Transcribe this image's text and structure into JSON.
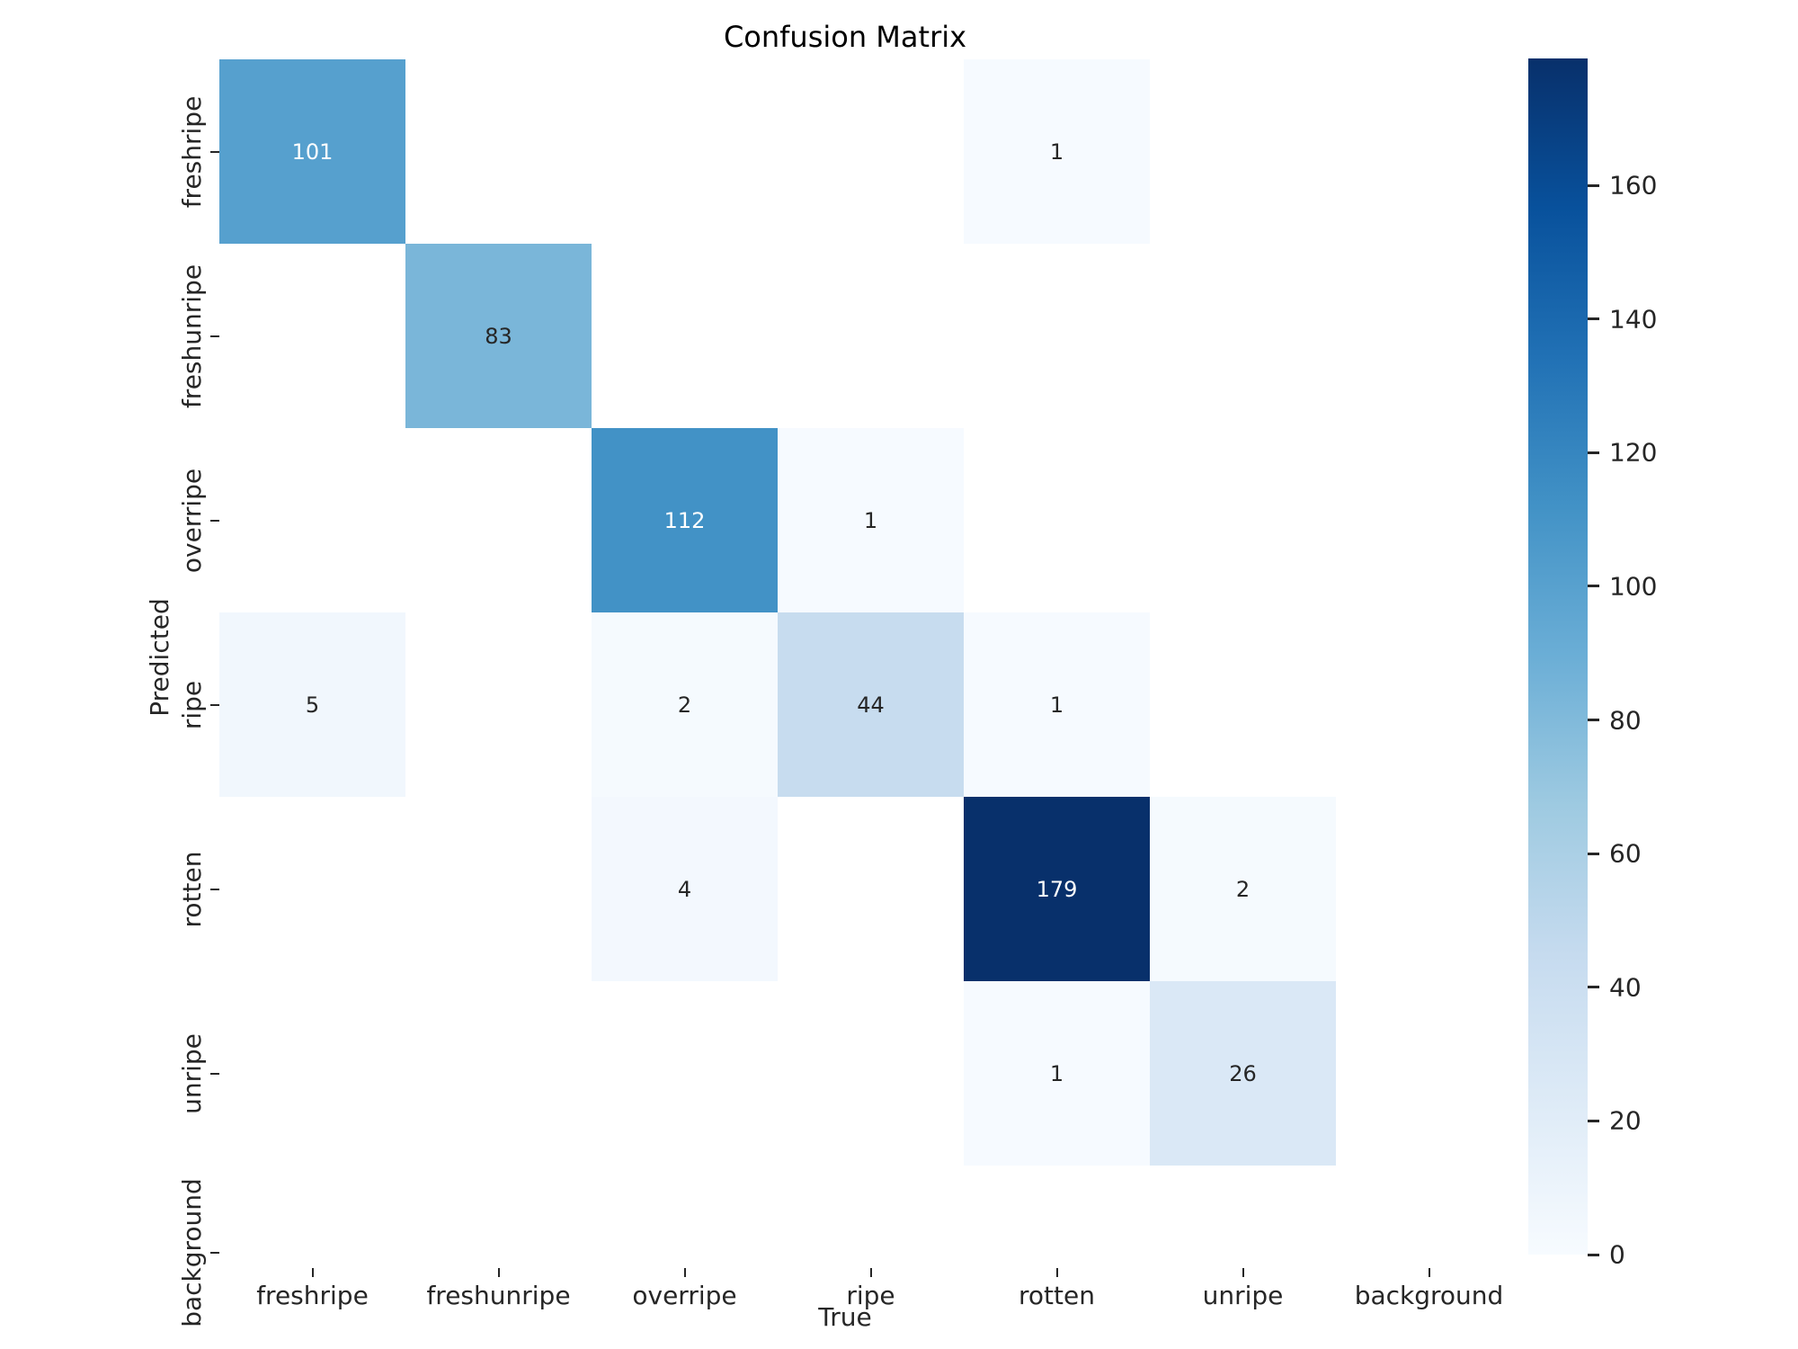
{
  "title": "Confusion Matrix",
  "x_axis": {
    "label": "True"
  },
  "y_axis": {
    "label": "Predicted"
  },
  "chart_data": {
    "type": "heatmap",
    "title": "Confusion Matrix",
    "xlabel": "True",
    "ylabel": "Predicted",
    "x_categories": [
      "freshripe",
      "freshunripe",
      "overripe",
      "ripe",
      "rotten",
      "unripe",
      "background"
    ],
    "y_categories": [
      "freshripe",
      "freshunripe",
      "overripe",
      "ripe",
      "rotten",
      "unripe",
      "background"
    ],
    "matrix": [
      [
        101,
        0,
        0,
        0,
        1,
        0,
        0
      ],
      [
        0,
        83,
        0,
        0,
        0,
        0,
        0
      ],
      [
        0,
        0,
        112,
        1,
        0,
        0,
        0
      ],
      [
        5,
        0,
        2,
        44,
        1,
        0,
        0
      ],
      [
        0,
        0,
        4,
        0,
        179,
        2,
        0
      ],
      [
        0,
        0,
        0,
        0,
        1,
        26,
        0
      ],
      [
        0,
        0,
        0,
        0,
        0,
        0,
        0
      ]
    ],
    "annotations_shown_for_zero": false,
    "vmin": 0,
    "vmax": 179,
    "colormap": "Blues",
    "legend_position": "right-colorbar",
    "grid": false,
    "colorbar": {
      "ticks": [
        0,
        20,
        40,
        60,
        80,
        100,
        120,
        140,
        160
      ]
    }
  },
  "colors": {
    "cmap_stops": [
      "#f7fbff",
      "#deebf7",
      "#c6dbef",
      "#9ecae1",
      "#6baed6",
      "#4292c6",
      "#2171b5",
      "#08519c",
      "#08306b"
    ],
    "zero_cell": "#ffffff",
    "annot_dark": "#262626",
    "annot_light": "#ffffff",
    "tick_color": "#262626",
    "background": "#ffffff"
  }
}
